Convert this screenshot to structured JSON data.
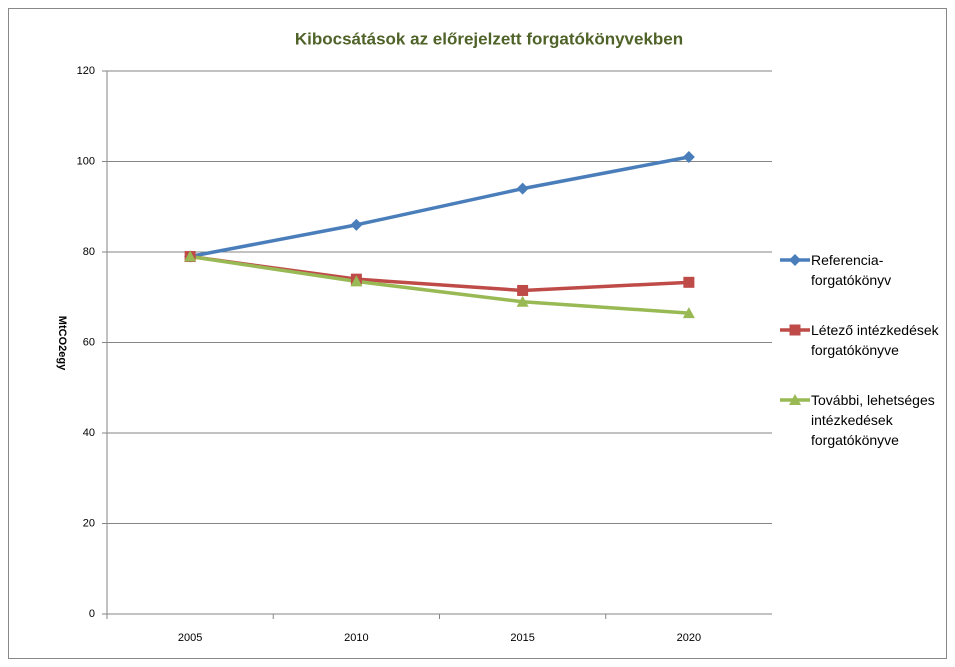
{
  "chart_data": {
    "type": "line",
    "title": "Kibocsátások az előrejelzett forgatókönyvekben",
    "y_label": "MtCO2egy",
    "categories": [
      "2005",
      "2010",
      "2015",
      "2020"
    ],
    "series": [
      {
        "name": "Referencia-forgatókönyv",
        "color": "#4a7ebb",
        "marker": "diamond",
        "values": [
          79,
          86,
          94,
          101
        ]
      },
      {
        "name": "Létező intézkedések forgatókönyve",
        "color": "#be4b48",
        "marker": "square",
        "values": [
          79,
          74,
          71.5,
          73.3
        ]
      },
      {
        "name": "További, lehetséges intézkedések forgatókönyve",
        "color": "#98b954",
        "marker": "triangle",
        "values": [
          79,
          73.5,
          69,
          66.5
        ]
      }
    ],
    "ylim": [
      0,
      120
    ],
    "yticks": [
      0,
      20,
      40,
      60,
      80,
      100,
      120
    ],
    "grid": true,
    "legend": "right"
  }
}
